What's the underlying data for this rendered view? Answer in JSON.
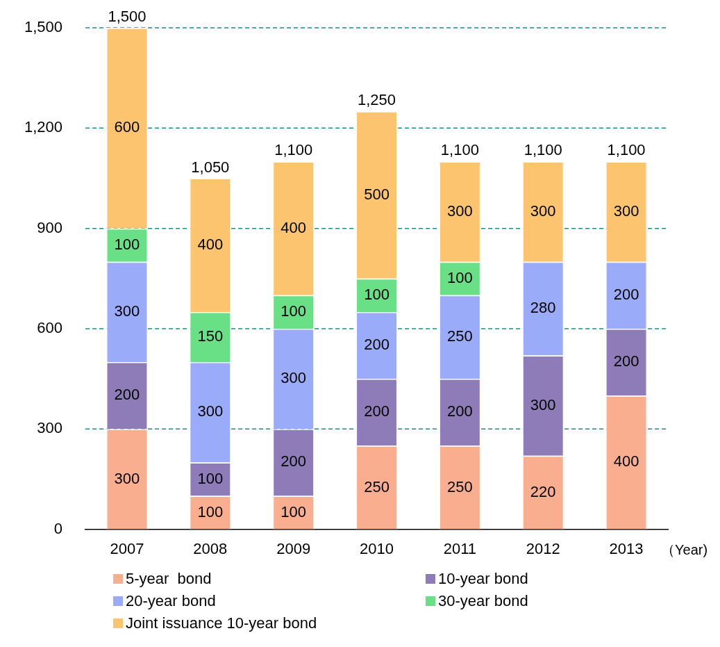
{
  "chart_data": {
    "type": "bar",
    "stacked": true,
    "xlabel": "（Year)",
    "categories": [
      "2007",
      "2008",
      "2009",
      "2010",
      "2011",
      "2012",
      "2013"
    ],
    "series": [
      {
        "name": "5-year  bond",
        "color": "#f9ae8f",
        "values": [
          300,
          100,
          100,
          250,
          250,
          220,
          400
        ]
      },
      {
        "name": "10-year bond",
        "color": "#8e7cb8",
        "values": [
          200,
          100,
          200,
          200,
          200,
          300,
          200
        ]
      },
      {
        "name": "20-year bond",
        "color": "#9aabfa",
        "values": [
          300,
          300,
          300,
          200,
          250,
          280,
          200
        ]
      },
      {
        "name": "30-year bond",
        "color": "#6ae086",
        "values": [
          100,
          150,
          100,
          100,
          100,
          null,
          null
        ]
      },
      {
        "name": "Joint issuance 10-year bond",
        "color": "#fdc46f",
        "values": [
          600,
          400,
          400,
          500,
          300,
          300,
          300
        ]
      }
    ],
    "ylim": [
      0,
      1500
    ],
    "yticks": [
      0,
      300,
      600,
      900,
      {
        "value": 1200,
        "label": "1,200"
      },
      {
        "value": 1500,
        "label": "1,500"
      }
    ],
    "grid": "y",
    "data_labels": true,
    "totals": [
      "1,500",
      "1,050",
      "1,100",
      "1,250",
      "1,100",
      "1,100",
      "1,100"
    ],
    "legend": "bottom"
  }
}
